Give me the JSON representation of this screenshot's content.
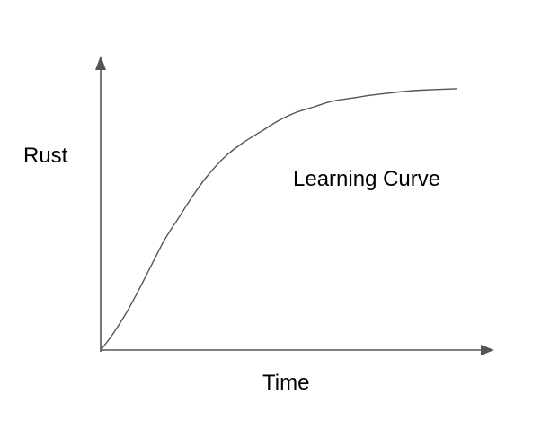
{
  "chart_data": {
    "type": "line",
    "title": "",
    "xlabel": "Time",
    "ylabel": "Rust",
    "annotation": "Learning Curve",
    "axis_ticks": false,
    "grid": false,
    "legend": "none",
    "xlim": [
      0,
      100
    ],
    "ylim": [
      0,
      100
    ],
    "series": [
      {
        "values_x": [
          0,
          3,
          7,
          10,
          14,
          18,
          22,
          26,
          30,
          35,
          40,
          45,
          50,
          55,
          60,
          65,
          70,
          75,
          80,
          85,
          90,
          100
        ],
        "values_y": [
          0,
          5,
          13,
          20,
          30,
          40,
          48,
          56,
          63,
          70,
          75,
          79,
          83,
          86,
          88,
          90,
          91,
          92,
          92.8,
          93.5,
          94,
          94.5
        ]
      }
    ],
    "colors": {
      "axis": "#555555",
      "curve": "#555555",
      "text": "#000000"
    }
  }
}
